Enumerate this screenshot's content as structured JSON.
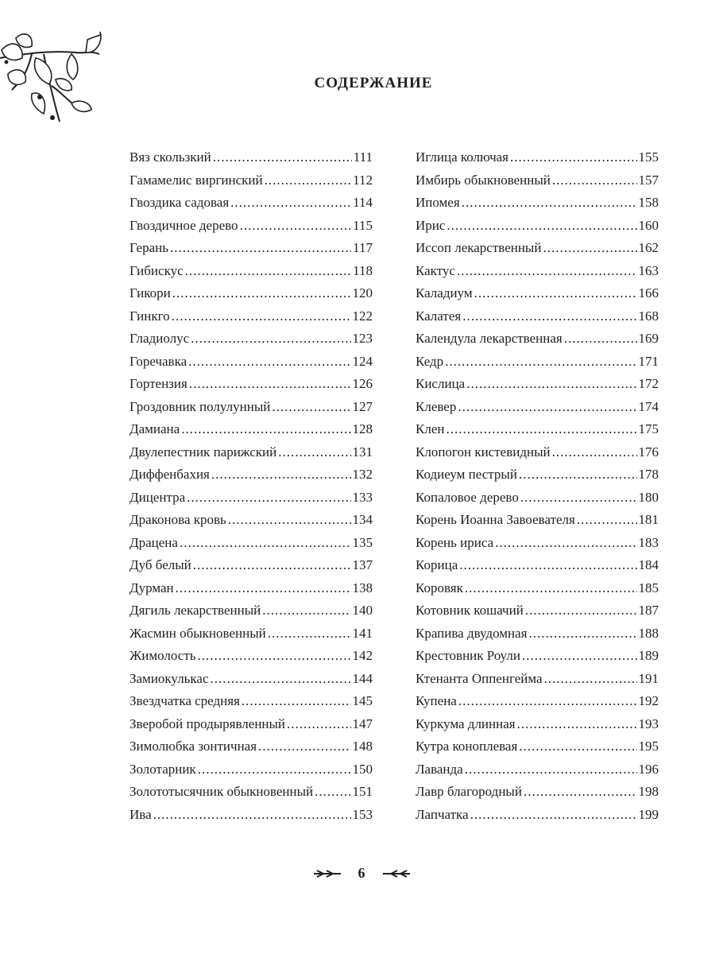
{
  "title": "СОДЕРЖАНИЕ",
  "page_number": "6",
  "ornament_icon": "leafy-branch-illustration",
  "left_column": [
    {
      "name": "Вяз скользкий",
      "page": "111"
    },
    {
      "name": "Гамамелис виргинский",
      "page": "112"
    },
    {
      "name": "Гвоздика садовая",
      "page": "114"
    },
    {
      "name": "Гвоздичное дерево",
      "page": "115"
    },
    {
      "name": "Герань",
      "page": "117"
    },
    {
      "name": "Гибискус",
      "page": "118"
    },
    {
      "name": "Гикори",
      "page": "120"
    },
    {
      "name": "Гинкго",
      "page": "122"
    },
    {
      "name": "Гладиолус",
      "page": "123"
    },
    {
      "name": "Горечавка",
      "page": "124"
    },
    {
      "name": "Гортензия",
      "page": "126"
    },
    {
      "name": "Гроздовник полулунный",
      "page": "127"
    },
    {
      "name": "Дамиана",
      "page": "128"
    },
    {
      "name": "Двулепестник парижский",
      "page": "131"
    },
    {
      "name": "Диффенбахия",
      "page": "132"
    },
    {
      "name": "Дицентра",
      "page": "133"
    },
    {
      "name": "Драконова кровь",
      "page": "134"
    },
    {
      "name": "Драцена",
      "page": "135"
    },
    {
      "name": "Дуб белый",
      "page": "137"
    },
    {
      "name": "Дурман",
      "page": "138"
    },
    {
      "name": "Дягиль лекарственный",
      "page": "140"
    },
    {
      "name": "Жасмин обыкновенный",
      "page": "141"
    },
    {
      "name": "Жимолость",
      "page": "142"
    },
    {
      "name": "Замиокулькас",
      "page": "144"
    },
    {
      "name": "Звездчатка средняя",
      "page": "145"
    },
    {
      "name": "Зверобой продырявленный",
      "page": "147"
    },
    {
      "name": "Зимолюбка зонтичная",
      "page": "148"
    },
    {
      "name": "Золотарник",
      "page": "150"
    },
    {
      "name": "Золототысячник обыкновенный",
      "page": "151"
    },
    {
      "name": "Ива",
      "page": "153"
    }
  ],
  "right_column": [
    {
      "name": "Иглица колючая",
      "page": "155"
    },
    {
      "name": "Имбирь обыкновенный",
      "page": "157"
    },
    {
      "name": "Ипомея",
      "page": "158"
    },
    {
      "name": "Ирис",
      "page": "160"
    },
    {
      "name": "Иссоп лекарственный",
      "page": "162"
    },
    {
      "name": "Кактус",
      "page": "163"
    },
    {
      "name": "Каладиум",
      "page": "166"
    },
    {
      "name": "Калатея",
      "page": "168"
    },
    {
      "name": "Календула лекарственная",
      "page": "169"
    },
    {
      "name": "Кедр",
      "page": "171"
    },
    {
      "name": "Кислица",
      "page": "172"
    },
    {
      "name": "Клевер",
      "page": "174"
    },
    {
      "name": "Клен",
      "page": "175"
    },
    {
      "name": "Клопогон кистевидный",
      "page": "176"
    },
    {
      "name": "Кодиеум пестрый",
      "page": "178"
    },
    {
      "name": "Копаловое дерево",
      "page": "180"
    },
    {
      "name": "Корень Иоанна Завоевателя",
      "page": "181"
    },
    {
      "name": "Корень ириса",
      "page": "183"
    },
    {
      "name": "Корица",
      "page": "184"
    },
    {
      "name": "Коровяк",
      "page": "185"
    },
    {
      "name": "Котовник кошачий",
      "page": "187"
    },
    {
      "name": "Крапива двудомная",
      "page": "188"
    },
    {
      "name": "Крестовник Роули",
      "page": "189"
    },
    {
      "name": "Ктенанта Оппенгейма",
      "page": "191"
    },
    {
      "name": "Купена",
      "page": "192"
    },
    {
      "name": "Куркума длинная",
      "page": "193"
    },
    {
      "name": "Кутра коноплевая",
      "page": "195"
    },
    {
      "name": "Лаванда",
      "page": "196"
    },
    {
      "name": "Лавр благородный",
      "page": "198"
    },
    {
      "name": "Лапчатка",
      "page": "199"
    }
  ]
}
